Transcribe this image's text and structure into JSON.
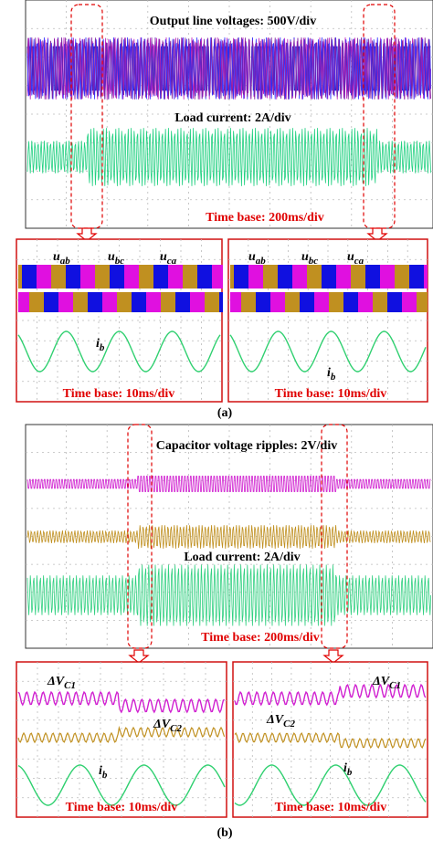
{
  "panel_a": {
    "overview": {
      "voltage_label": "Output line voltages: 500V/div",
      "current_label": "Load current: 2A/div",
      "time_base": "Time base: 200ms/div"
    },
    "zoom_left": {
      "labels": [
        {
          "main": "u",
          "sub": "ab"
        },
        {
          "main": "u",
          "sub": "bc"
        },
        {
          "main": "u",
          "sub": "ca"
        },
        {
          "main": "i",
          "sub": "b"
        }
      ],
      "time_base": "Time base: 10ms/div"
    },
    "zoom_right": {
      "labels": [
        {
          "main": "u",
          "sub": "ab"
        },
        {
          "main": "u",
          "sub": "bc"
        },
        {
          "main": "u",
          "sub": "ca"
        },
        {
          "main": "i",
          "sub": "b"
        }
      ],
      "time_base": "Time base: 10ms/div"
    },
    "caption": "(a)"
  },
  "panel_b": {
    "overview": {
      "voltage_label": "Capacitor voltage ripples: 2V/div",
      "current_label": "Load current: 2A/div",
      "time_base": "Time base: 200ms/div"
    },
    "zoom_left": {
      "labels": [
        {
          "main": "ΔV",
          "sub": "C1"
        },
        {
          "main": "ΔV",
          "sub": "C2"
        },
        {
          "main": "i",
          "sub": "b"
        }
      ],
      "time_base": "Time base: 10ms/div"
    },
    "zoom_right": {
      "labels": [
        {
          "main": "ΔV",
          "sub": "C1"
        },
        {
          "main": "ΔV",
          "sub": "C2"
        },
        {
          "main": "i",
          "sub": "b"
        }
      ],
      "time_base": "Time base: 10ms/div"
    },
    "caption": "(b)"
  }
}
